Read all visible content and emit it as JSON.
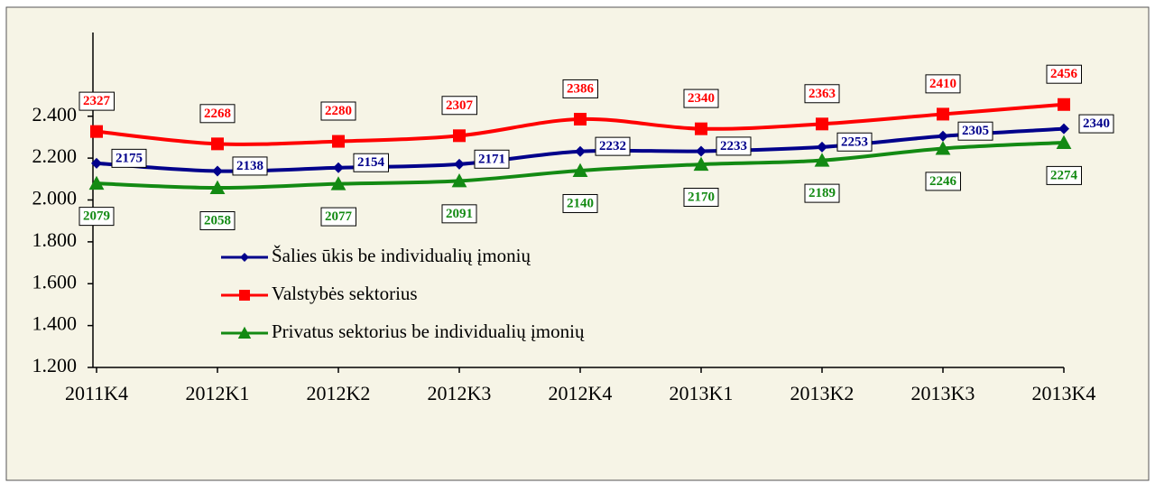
{
  "chart_data": {
    "type": "line",
    "categories": [
      "2011K4",
      "2012K1",
      "2012K2",
      "2012K3",
      "2012K4",
      "2013K1",
      "2013K2",
      "2013K3",
      "2013K4"
    ],
    "series": [
      {
        "name": "Šalies ūkis be individualių įmonių",
        "color": "#00008b",
        "marker": "diamond",
        "label_side": "right",
        "values": [
          2175,
          2138,
          2154,
          2171,
          2232,
          2233,
          2253,
          2305,
          2340
        ]
      },
      {
        "name": "Valstybės sektorius",
        "color": "#ff0000",
        "marker": "square",
        "label_side": "above",
        "values": [
          2327,
          2268,
          2280,
          2307,
          2386,
          2340,
          2363,
          2410,
          2456
        ]
      },
      {
        "name": "Privatus sektorius be individualių įmonių",
        "color": "#138a13",
        "marker": "triangle",
        "label_side": "below",
        "values": [
          2079,
          2058,
          2077,
          2091,
          2140,
          2170,
          2189,
          2246,
          2274
        ]
      }
    ],
    "ylim": [
      1200,
      2800
    ],
    "yticks": [
      {
        "value": 1200,
        "label": "1.200"
      },
      {
        "value": 1400,
        "label": "1.400"
      },
      {
        "value": 1600,
        "label": "1.600"
      },
      {
        "value": 1800,
        "label": "1.800"
      },
      {
        "value": 2000,
        "label": "2.000"
      },
      {
        "value": 2200,
        "label": "2.200"
      },
      {
        "value": 2400,
        "label": "2.400"
      }
    ],
    "smooth": true,
    "grid": false,
    "legend": "center-left"
  }
}
